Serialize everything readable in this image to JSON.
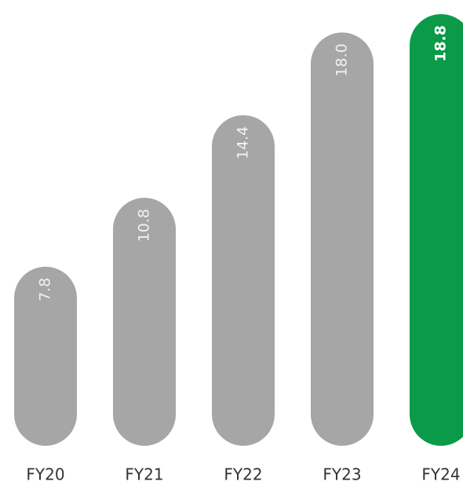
{
  "chart_data": {
    "type": "bar",
    "categories": [
      "FY20",
      "FY21",
      "FY22",
      "FY23",
      "FY24"
    ],
    "values": [
      7.8,
      10.8,
      14.4,
      18.0,
      18.8
    ],
    "value_labels": [
      "7.8",
      "10.8",
      "14.4",
      "18.0",
      "18.8"
    ],
    "colors": [
      "#a6a6a6",
      "#a6a6a6",
      "#a6a6a6",
      "#a6a6a6",
      "#0a9a48"
    ]
  }
}
